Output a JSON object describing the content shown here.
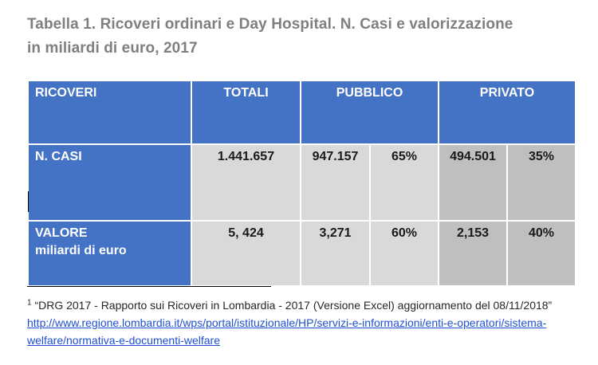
{
  "title": {
    "line1": "Tabella 1. Ricoveri ordinari e Day Hospital.  N. Casi e valorizzazione",
    "line2": "in miliardi di euro, 2017"
  },
  "table": {
    "headers": {
      "ricoveri": "RICOVERI",
      "totali": "TOTALI",
      "pubblico": "PUBBLICO",
      "privato": "PRIVATO"
    },
    "rows": [
      {
        "label": "N. CASI",
        "label_sub": "",
        "totali": "1.441.657",
        "pubblico": "947.157",
        "pubblico_pct": "65%",
        "privato": "494.501",
        "privato_pct": "35%"
      },
      {
        "label": "VALORE",
        "label_sub": "miliardi di euro",
        "totali": "5, 424",
        "pubblico": "3,271",
        "pubblico_pct": "60%",
        "privato": "2,153",
        "privato_pct": "40%"
      }
    ],
    "colors": {
      "header": "#4472c4",
      "cell_light": "#d9d9d9",
      "cell_dark": "#bfbfbf"
    }
  },
  "footnote": {
    "marker": "1",
    "text": " “DRG 2017 - Rapporto sui Ricoveri in Lombardia - 2017 (Versione Excel) aggiornamento del 08/11/2018” ",
    "link": "http://www.regione.lombardia.it/wps/portal/istituzionale/HP/servizi-e-informazioni/enti-e-operatori/sistema-welfare/normativa-e-documenti-welfare"
  }
}
